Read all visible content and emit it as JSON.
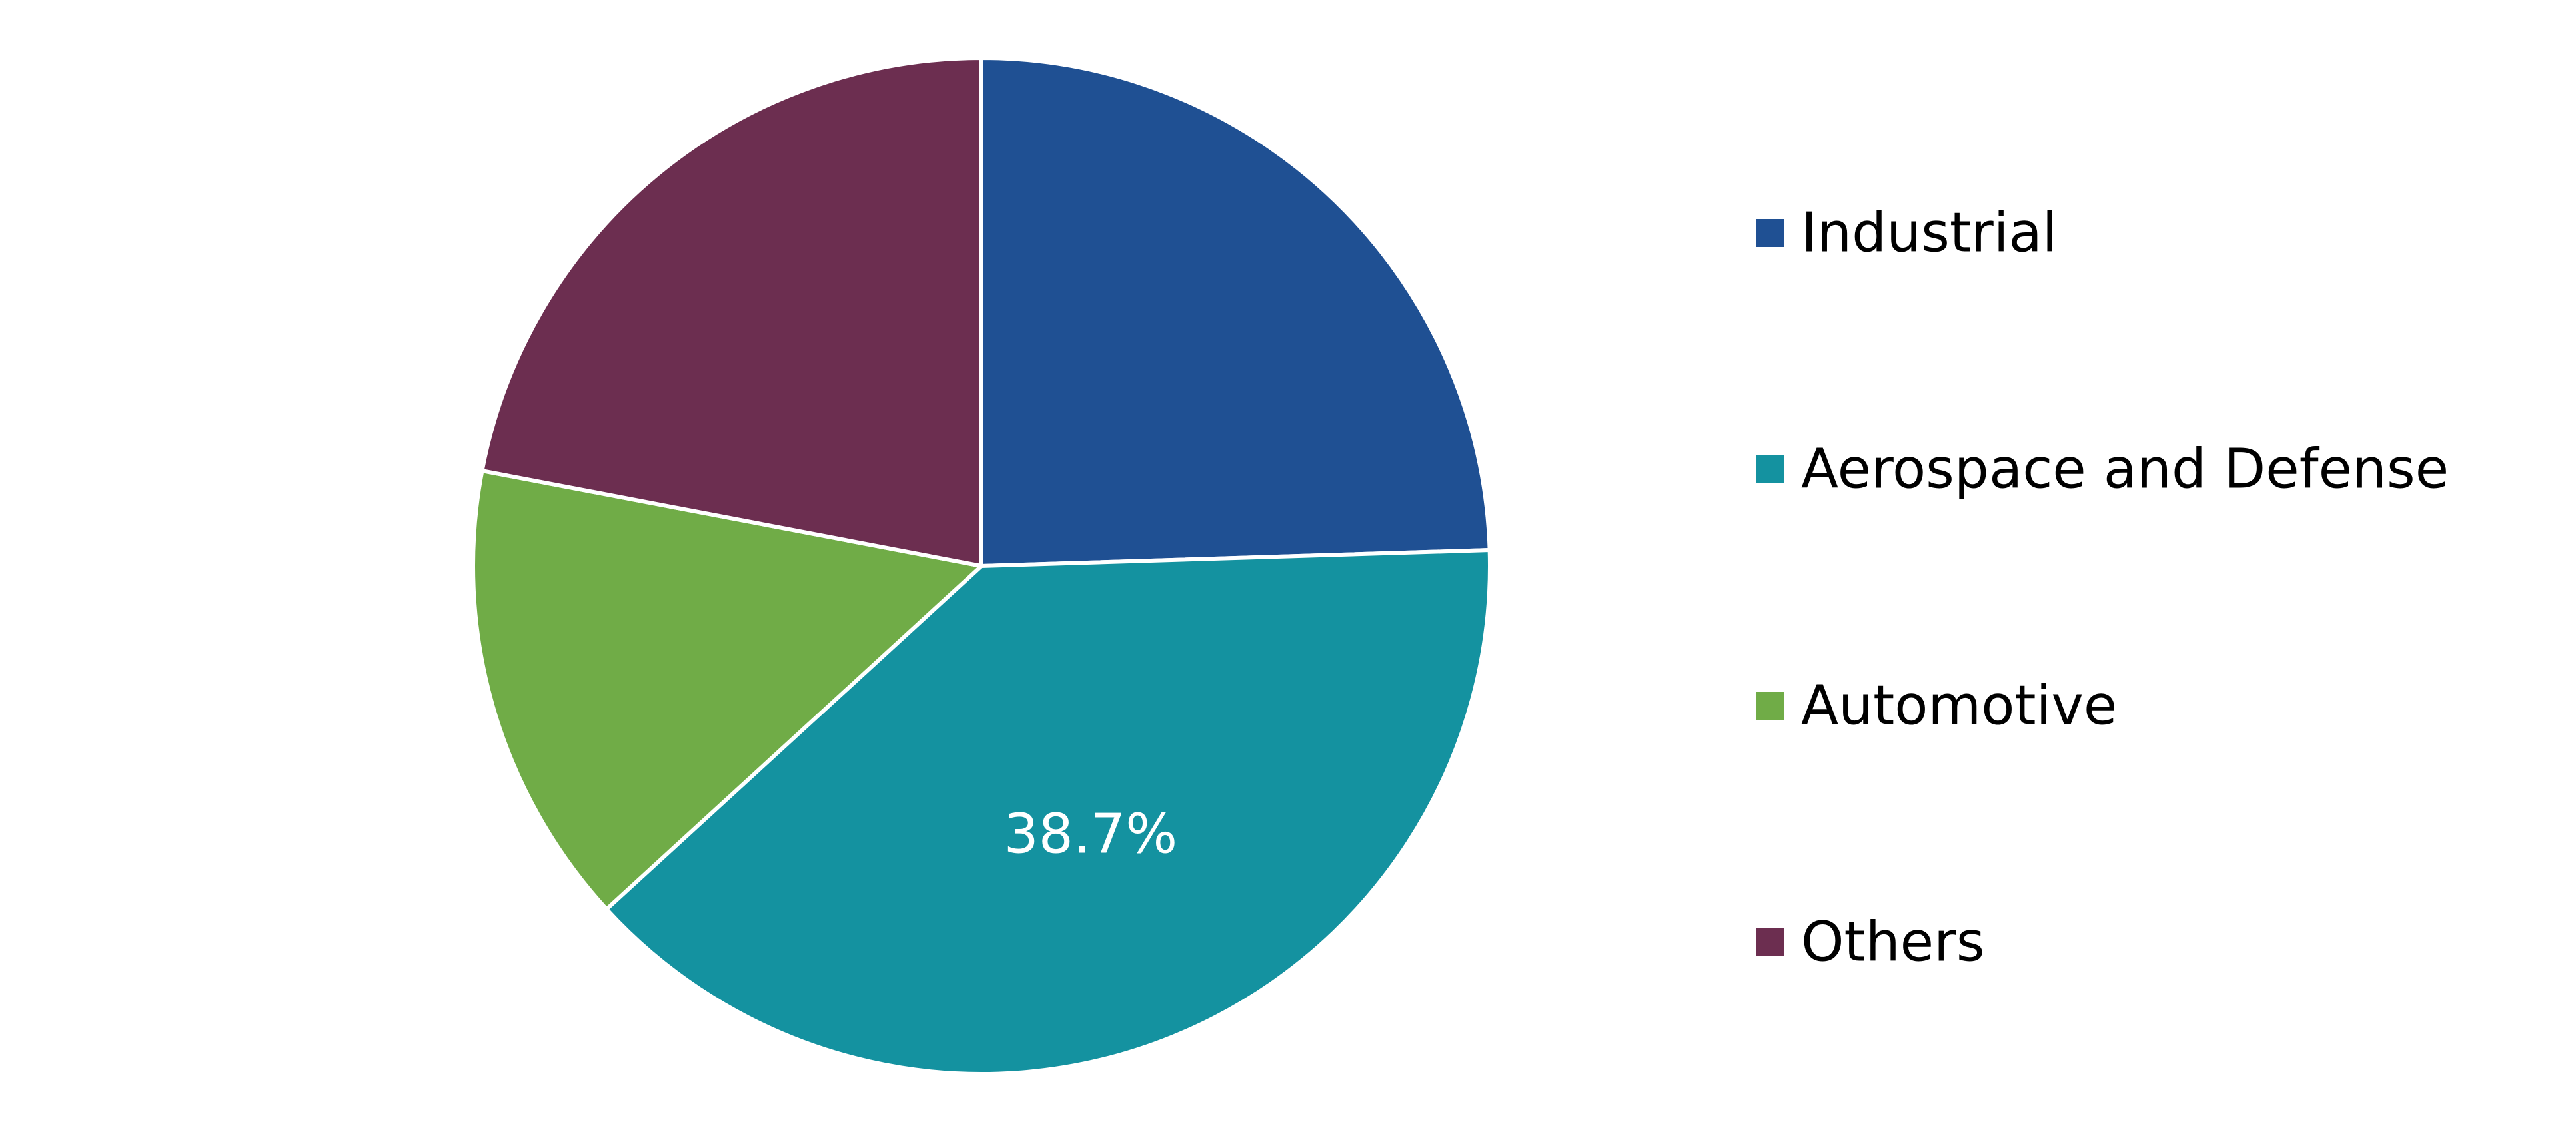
{
  "chart_data": {
    "type": "pie",
    "title": "",
    "categories": [
      "Industrial",
      "Aerospace and Defense",
      "Automotive",
      "Others"
    ],
    "values": [
      24.5,
      38.7,
      14.8,
      22.0
    ],
    "unit": "%",
    "start_angle": "12 o'clock, clockwise",
    "colors": [
      "#1f5093",
      "#1492a0",
      "#70ac47",
      "#6c2e50"
    ],
    "data_labels": [
      {
        "category": "Aerospace and Defense",
        "text": "38.7%"
      }
    ],
    "legend": {
      "placement": "right",
      "entries": [
        "Industrial",
        "Aerospace and Defense",
        "Automotive",
        "Others"
      ]
    }
  }
}
